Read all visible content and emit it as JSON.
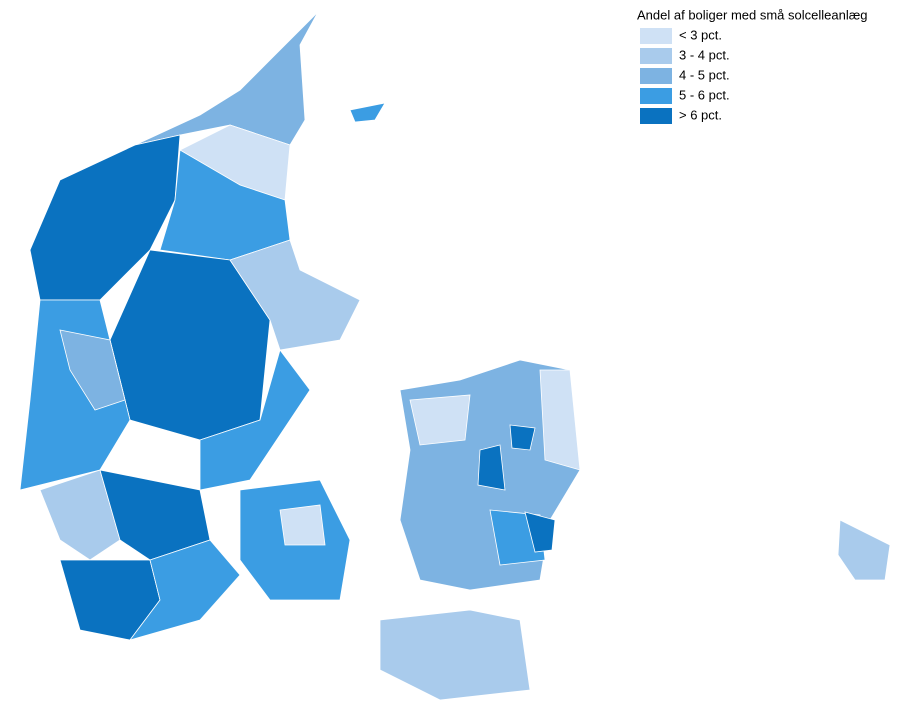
{
  "legend": {
    "title": "Andel af boliger med små solcelleanlæg",
    "items": [
      {
        "label": "< 3 pct.",
        "color": "#cfe1f5"
      },
      {
        "label": "3 - 4 pct.",
        "color": "#a9cbec"
      },
      {
        "label": "4 - 5 pct.",
        "color": "#7db3e2"
      },
      {
        "label": "5 - 6 pct.",
        "color": "#3b9de3"
      },
      {
        "label": "> 6 pct.",
        "color": "#0a72c0"
      }
    ]
  }
}
